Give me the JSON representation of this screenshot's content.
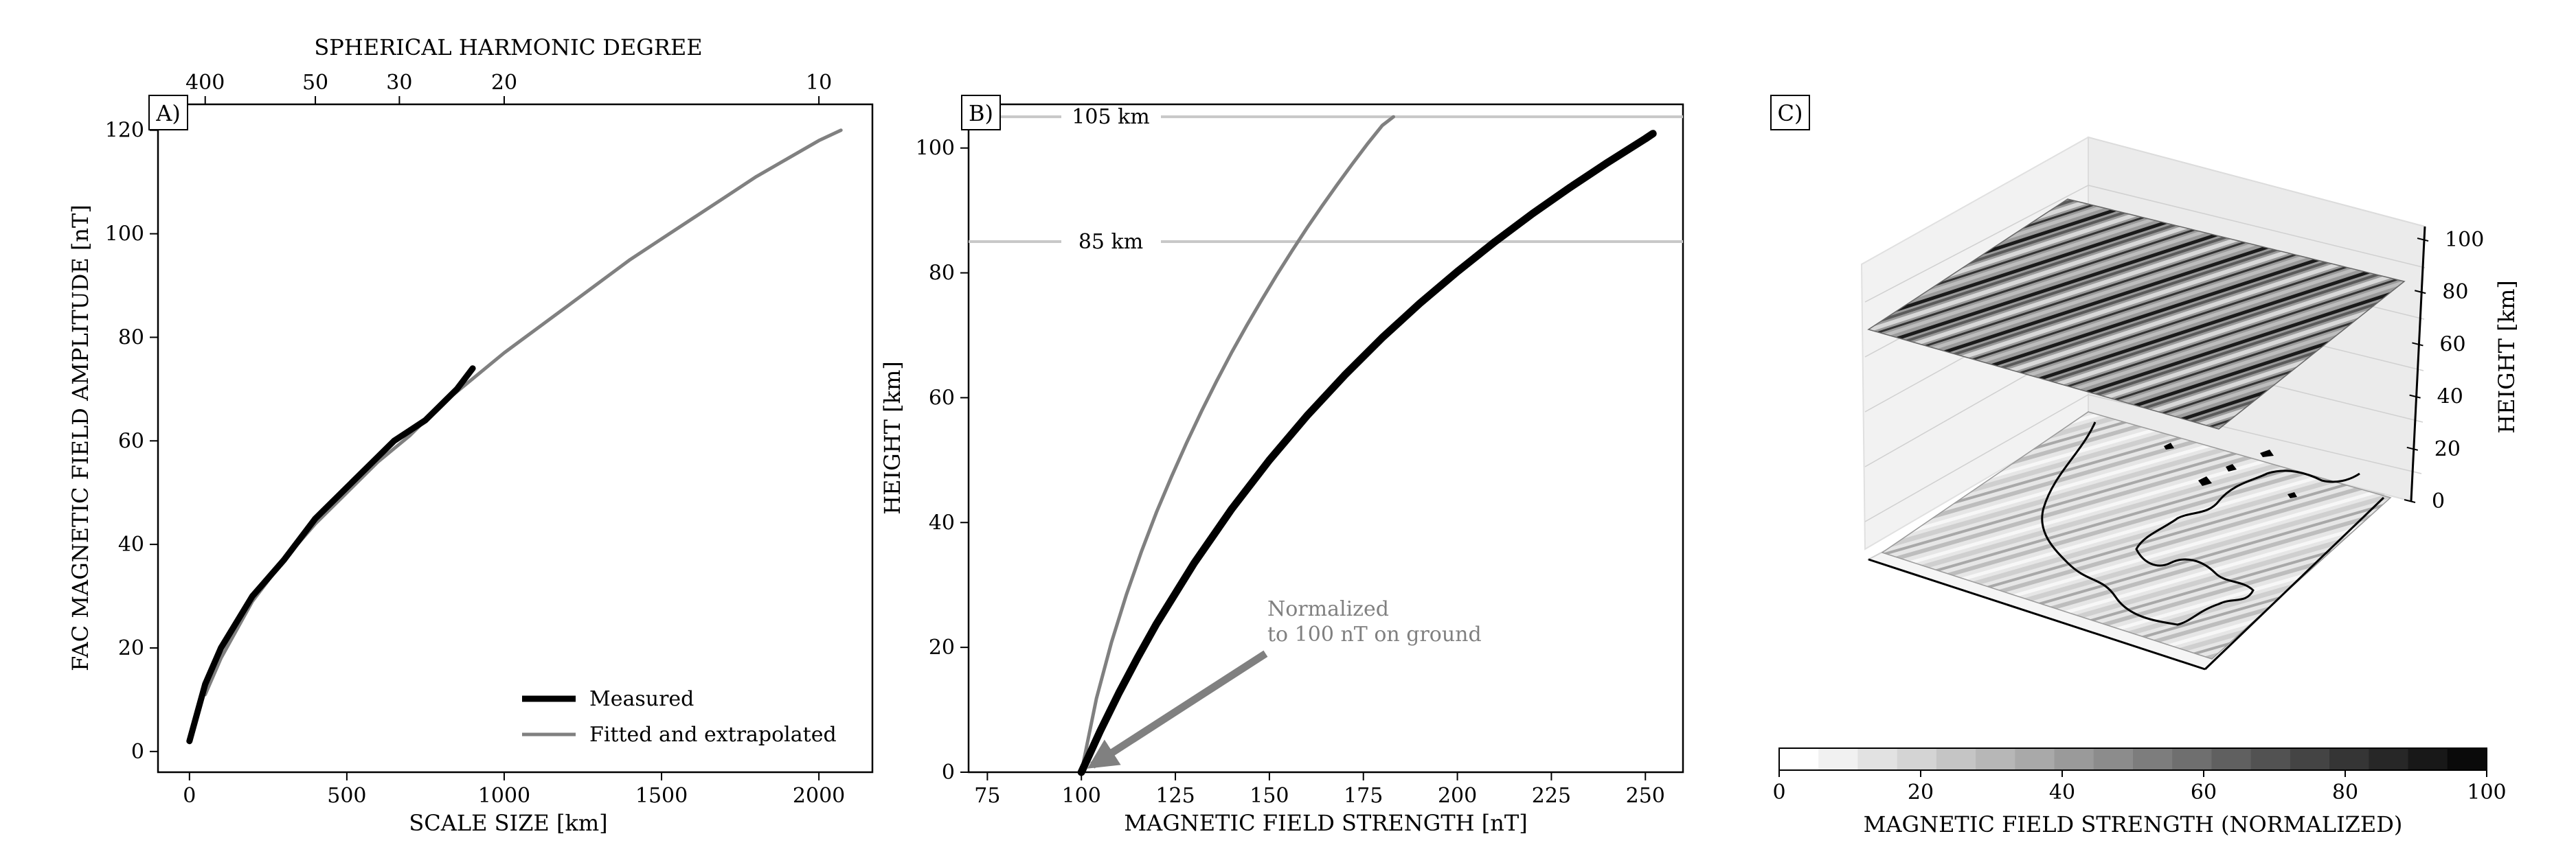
{
  "chart_data": [
    {
      "panel": "A)",
      "type": "line",
      "xlabel": "SCALE SIZE [km]",
      "ylabel": "FAC MAGNETIC FIELD AMPLITUDE [nT]",
      "top_xlabel": "SPHERICAL HARMONIC DEGREE",
      "xlim": [
        -100,
        2170
      ],
      "ylim": [
        -4,
        125
      ],
      "xticks": [
        0,
        500,
        1000,
        1500,
        2000
      ],
      "yticks": [
        0,
        20,
        40,
        60,
        80,
        100,
        120
      ],
      "top_ticks": [
        {
          "label": "400",
          "x": 50
        },
        {
          "label": "50",
          "x": 400
        },
        {
          "label": "30",
          "x": 667
        },
        {
          "label": "20",
          "x": 1000
        },
        {
          "label": "10",
          "x": 2000
        }
      ],
      "legend_position": "lower-right",
      "series": [
        {
          "name": "Measured",
          "color": "#000000",
          "x": [
            0,
            50,
            100,
            200,
            300,
            400,
            500,
            600,
            650,
            700,
            750,
            800,
            850,
            900
          ],
          "y": [
            2,
            13,
            20,
            30,
            37,
            45,
            51,
            57,
            60,
            62,
            64,
            67,
            70,
            74
          ]
        },
        {
          "name": "Fitted and extrapolated",
          "color": "#808080",
          "x": [
            50,
            100,
            200,
            300,
            400,
            500,
            600,
            700,
            800,
            900,
            1000,
            1100,
            1200,
            1300,
            1400,
            1500,
            1600,
            1700,
            1800,
            1900,
            2000,
            2070
          ],
          "y": [
            11,
            18,
            29,
            37,
            44,
            50,
            56,
            61,
            67,
            72,
            77,
            81.5,
            86,
            90.5,
            95,
            99,
            103,
            107,
            111,
            114.5,
            118,
            120
          ]
        }
      ]
    },
    {
      "panel": "B)",
      "type": "line",
      "xlabel": "MAGNETIC FIELD STRENGTH [nT]",
      "ylabel": "HEIGHT [km]",
      "xlim": [
        70,
        260
      ],
      "ylim": [
        0,
        107
      ],
      "xticks": [
        75,
        100,
        125,
        150,
        175,
        200,
        225,
        250
      ],
      "yticks": [
        0,
        20,
        40,
        60,
        80,
        100
      ],
      "hlines": [
        {
          "y": 105,
          "label": "105 km"
        },
        {
          "y": 85,
          "label": "85 km"
        }
      ],
      "annotation": {
        "line1": "Normalized",
        "line2": "to 100 nT on ground",
        "arrow_to": [
          100,
          0
        ],
        "text_at": [
          149,
          19
        ]
      },
      "series": [
        {
          "color": "#808080",
          "x": [
            100,
            104,
            108,
            112,
            116,
            120,
            124,
            128,
            132,
            136,
            140,
            144,
            148,
            152,
            156,
            160,
            164,
            168,
            172,
            176,
            180,
            183
          ],
          "y": [
            0,
            11.8,
            20.8,
            28.5,
            35.4,
            41.7,
            47.4,
            52.8,
            57.9,
            62.7,
            67.3,
            71.6,
            75.7,
            79.7,
            83.5,
            87.2,
            90.7,
            94.1,
            97.4,
            100.6,
            103.6,
            105
          ]
        },
        {
          "color": "#000000",
          "x": [
            100,
            105,
            110,
            115,
            120,
            130,
            140,
            150,
            160,
            170,
            180,
            190,
            200,
            210,
            220,
            230,
            240,
            250,
            252
          ],
          "y": [
            0,
            6.6,
            12.7,
            18.4,
            23.8,
            33.5,
            42.2,
            50.0,
            57.1,
            63.6,
            69.6,
            75.1,
            80.2,
            85.0,
            89.5,
            93.7,
            97.7,
            101.5,
            102.3
          ]
        }
      ]
    },
    {
      "panel": "C)",
      "type": "heatmap",
      "zlabel": "HEIGHT [km]",
      "zlim": [
        0,
        105
      ],
      "zticks": [
        0,
        20,
        40,
        60,
        80,
        100
      ],
      "layers_km": [
        0,
        105
      ],
      "colorbar": {
        "label": "MAGNETIC FIELD STRENGTH (NORMALIZED)",
        "ticks": [
          0,
          20,
          40,
          60,
          80,
          100
        ],
        "levels": 18
      }
    }
  ]
}
